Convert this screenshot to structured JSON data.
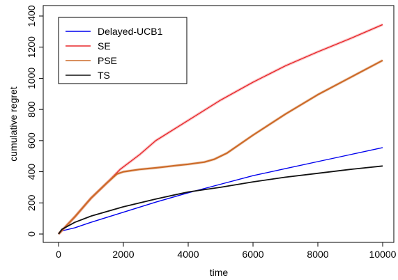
{
  "chart_data": {
    "type": "line",
    "title": "",
    "xlabel": "time",
    "ylabel": "cumulative regret",
    "xlim": [
      0,
      10000
    ],
    "ylim": [
      -20,
      1400
    ],
    "xticks": [
      0,
      2000,
      4000,
      6000,
      8000,
      10000
    ],
    "yticks": [
      0,
      200,
      400,
      600,
      800,
      1000,
      1200,
      1400
    ],
    "grid": false,
    "legend_position": "top-left",
    "series": [
      {
        "name": "Delayed-UCB1",
        "color": "#0000ee",
        "x": [
          0,
          100,
          500,
          1000,
          2000,
          3000,
          4000,
          5000,
          6000,
          7000,
          8000,
          9000,
          10000
        ],
        "y": [
          0,
          20,
          40,
          75,
          140,
          205,
          265,
          320,
          375,
          420,
          465,
          510,
          555
        ]
      },
      {
        "name": "SE",
        "color": "#e8262a",
        "x": [
          0,
          500,
          1000,
          1500,
          1900,
          2500,
          3000,
          4000,
          5000,
          6000,
          7000,
          8000,
          9000,
          10000
        ],
        "y": [
          0,
          110,
          230,
          330,
          415,
          510,
          600,
          730,
          860,
          975,
          1080,
          1170,
          1255,
          1345
        ]
      },
      {
        "name": "PSE",
        "color": "#cc6a28",
        "x": [
          0,
          500,
          1000,
          1500,
          1800,
          2000,
          2500,
          3000,
          3500,
          4000,
          4500,
          4800,
          5200,
          6000,
          7000,
          8000,
          9000,
          10000
        ],
        "y": [
          0,
          110,
          230,
          330,
          385,
          400,
          415,
          425,
          437,
          448,
          462,
          480,
          520,
          635,
          770,
          895,
          1005,
          1115
        ]
      },
      {
        "name": "TS",
        "color": "#111111",
        "x": [
          0,
          100,
          500,
          1000,
          2000,
          3000,
          4000,
          5000,
          6000,
          7000,
          8000,
          9000,
          10000
        ],
        "y": [
          0,
          30,
          75,
          115,
          175,
          225,
          270,
          300,
          335,
          365,
          390,
          415,
          437
        ]
      }
    ]
  }
}
